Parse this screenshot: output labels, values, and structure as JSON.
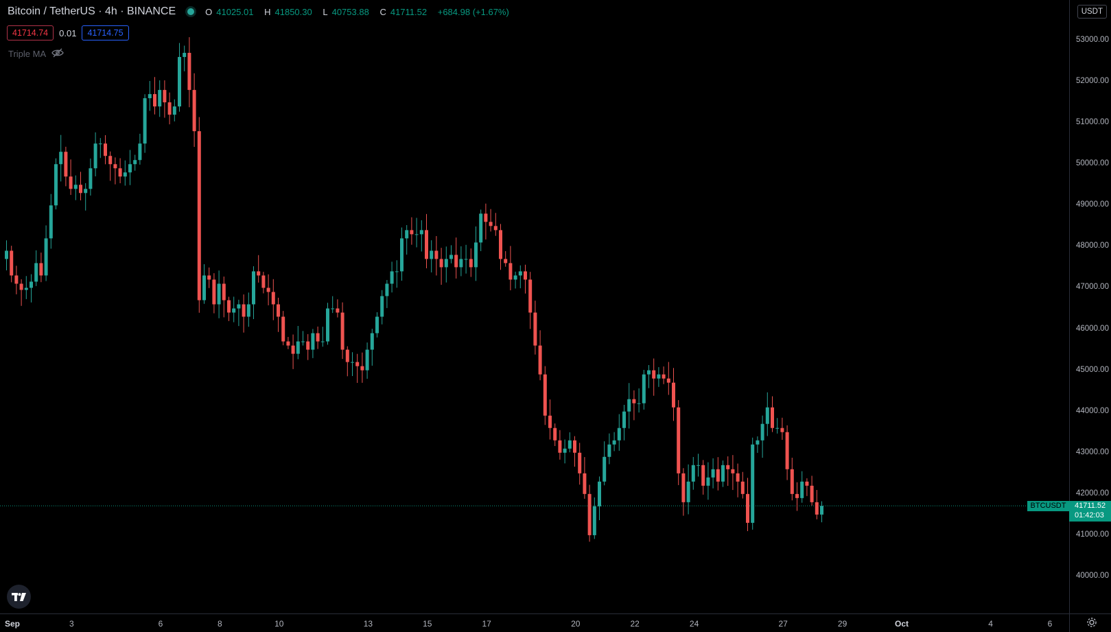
{
  "header": {
    "symbol": "Bitcoin / TetherUS · 4h · BINANCE",
    "ohlc": {
      "o_key": "O",
      "o": "41025.01",
      "h_key": "H",
      "h": "41850.30",
      "l_key": "L",
      "l": "40753.88",
      "c_key": "C",
      "c": "41711.52",
      "change": "+684.98 (+1.67%)"
    },
    "sell_price": "41714.74",
    "spread": "0.01",
    "buy_price": "41714.75",
    "indicator": "Triple MA"
  },
  "currency": "USDT",
  "last_price": {
    "symbol": "BTCUSDT",
    "price": "41711.52",
    "countdown": "01:42:03"
  },
  "colors": {
    "up": "#26a69a",
    "down": "#ef5350",
    "background": "#000000",
    "tag": "#089981"
  },
  "icons": [
    "eye-crossed-icon",
    "tradingview-logo-icon",
    "gear-icon"
  ],
  "chart_data": {
    "type": "candlestick",
    "title": "Bitcoin / TetherUS · 4h · BINANCE",
    "y_ticks": [
      "53000.00",
      "52000.00",
      "51000.00",
      "50000.00",
      "49000.00",
      "48000.00",
      "47000.00",
      "46000.00",
      "45000.00",
      "44000.00",
      "43000.00",
      "42000.00",
      "41000.00",
      "40000.00"
    ],
    "ylim": [
      39200,
      53800
    ],
    "x_ticks": [
      {
        "label": "Sep",
        "bold": true,
        "bar": 0
      },
      {
        "label": "3",
        "bar": 12
      },
      {
        "label": "6",
        "bar": 30
      },
      {
        "label": "8",
        "bar": 42
      },
      {
        "label": "10",
        "bar": 54
      },
      {
        "label": "13",
        "bar": 72
      },
      {
        "label": "15",
        "bar": 84
      },
      {
        "label": "17",
        "bar": 96
      },
      {
        "label": "20",
        "bar": 114
      },
      {
        "label": "22",
        "bar": 126
      },
      {
        "label": "24",
        "bar": 138
      },
      {
        "label": "27",
        "bar": 156
      },
      {
        "label": "29",
        "bar": 168
      },
      {
        "label": "Oct",
        "bold": true,
        "bar": 180
      },
      {
        "label": "4",
        "bar": 198
      },
      {
        "label": "6",
        "bar": 210
      }
    ],
    "last_close": 41711.52,
    "closes": [
      47900,
      47300,
      47100,
      46950,
      47000,
      47150,
      47600,
      47300,
      48200,
      49000,
      50000,
      50300,
      49700,
      49400,
      49500,
      49300,
      49400,
      49900,
      50500,
      50500,
      50200,
      50000,
      49900,
      49700,
      49800,
      50000,
      50100,
      50500,
      51600,
      51700,
      51400,
      51800,
      51500,
      51200,
      51400,
      52600,
      52700,
      51800,
      50800,
      46700,
      47300,
      47200,
      46600,
      47100,
      46700,
      46400,
      46500,
      46600,
      46300,
      46600,
      47400,
      47300,
      47000,
      46900,
      46600,
      46300,
      45700,
      45600,
      45400,
      45700,
      45700,
      45500,
      45900,
      45700,
      45700,
      46500,
      46500,
      46400,
      45500,
      45200,
      45200,
      45100,
      45000,
      45500,
      45900,
      46300,
      46800,
      47100,
      47400,
      47400,
      48200,
      48400,
      48300,
      48300,
      48400,
      47700,
      47900,
      47700,
      47500,
      47700,
      47800,
      47500,
      47700,
      47700,
      47500,
      48100,
      48800,
      48600,
      48500,
      48400,
      47700,
      47600,
      47200,
      47300,
      47400,
      47200,
      46400,
      45600,
      44900,
      43900,
      43600,
      43300,
      43000,
      43100,
      43300,
      43000,
      42500,
      42000,
      41000,
      41700,
      42300,
      42900,
      43200,
      43300,
      43600,
      44000,
      44300,
      44200,
      44200,
      44900,
      45000,
      44800,
      44900,
      44800,
      44700,
      44100,
      42500,
      41800,
      42300,
      42700,
      42700,
      42200,
      42400,
      42600,
      42300,
      42700,
      42600,
      42500,
      42300,
      42000,
      41300,
      43200,
      43300,
      43700,
      44100,
      43600,
      43600,
      43500,
      42600,
      42000,
      41900,
      42300,
      42200,
      41800,
      41500,
      41711.52
    ]
  }
}
